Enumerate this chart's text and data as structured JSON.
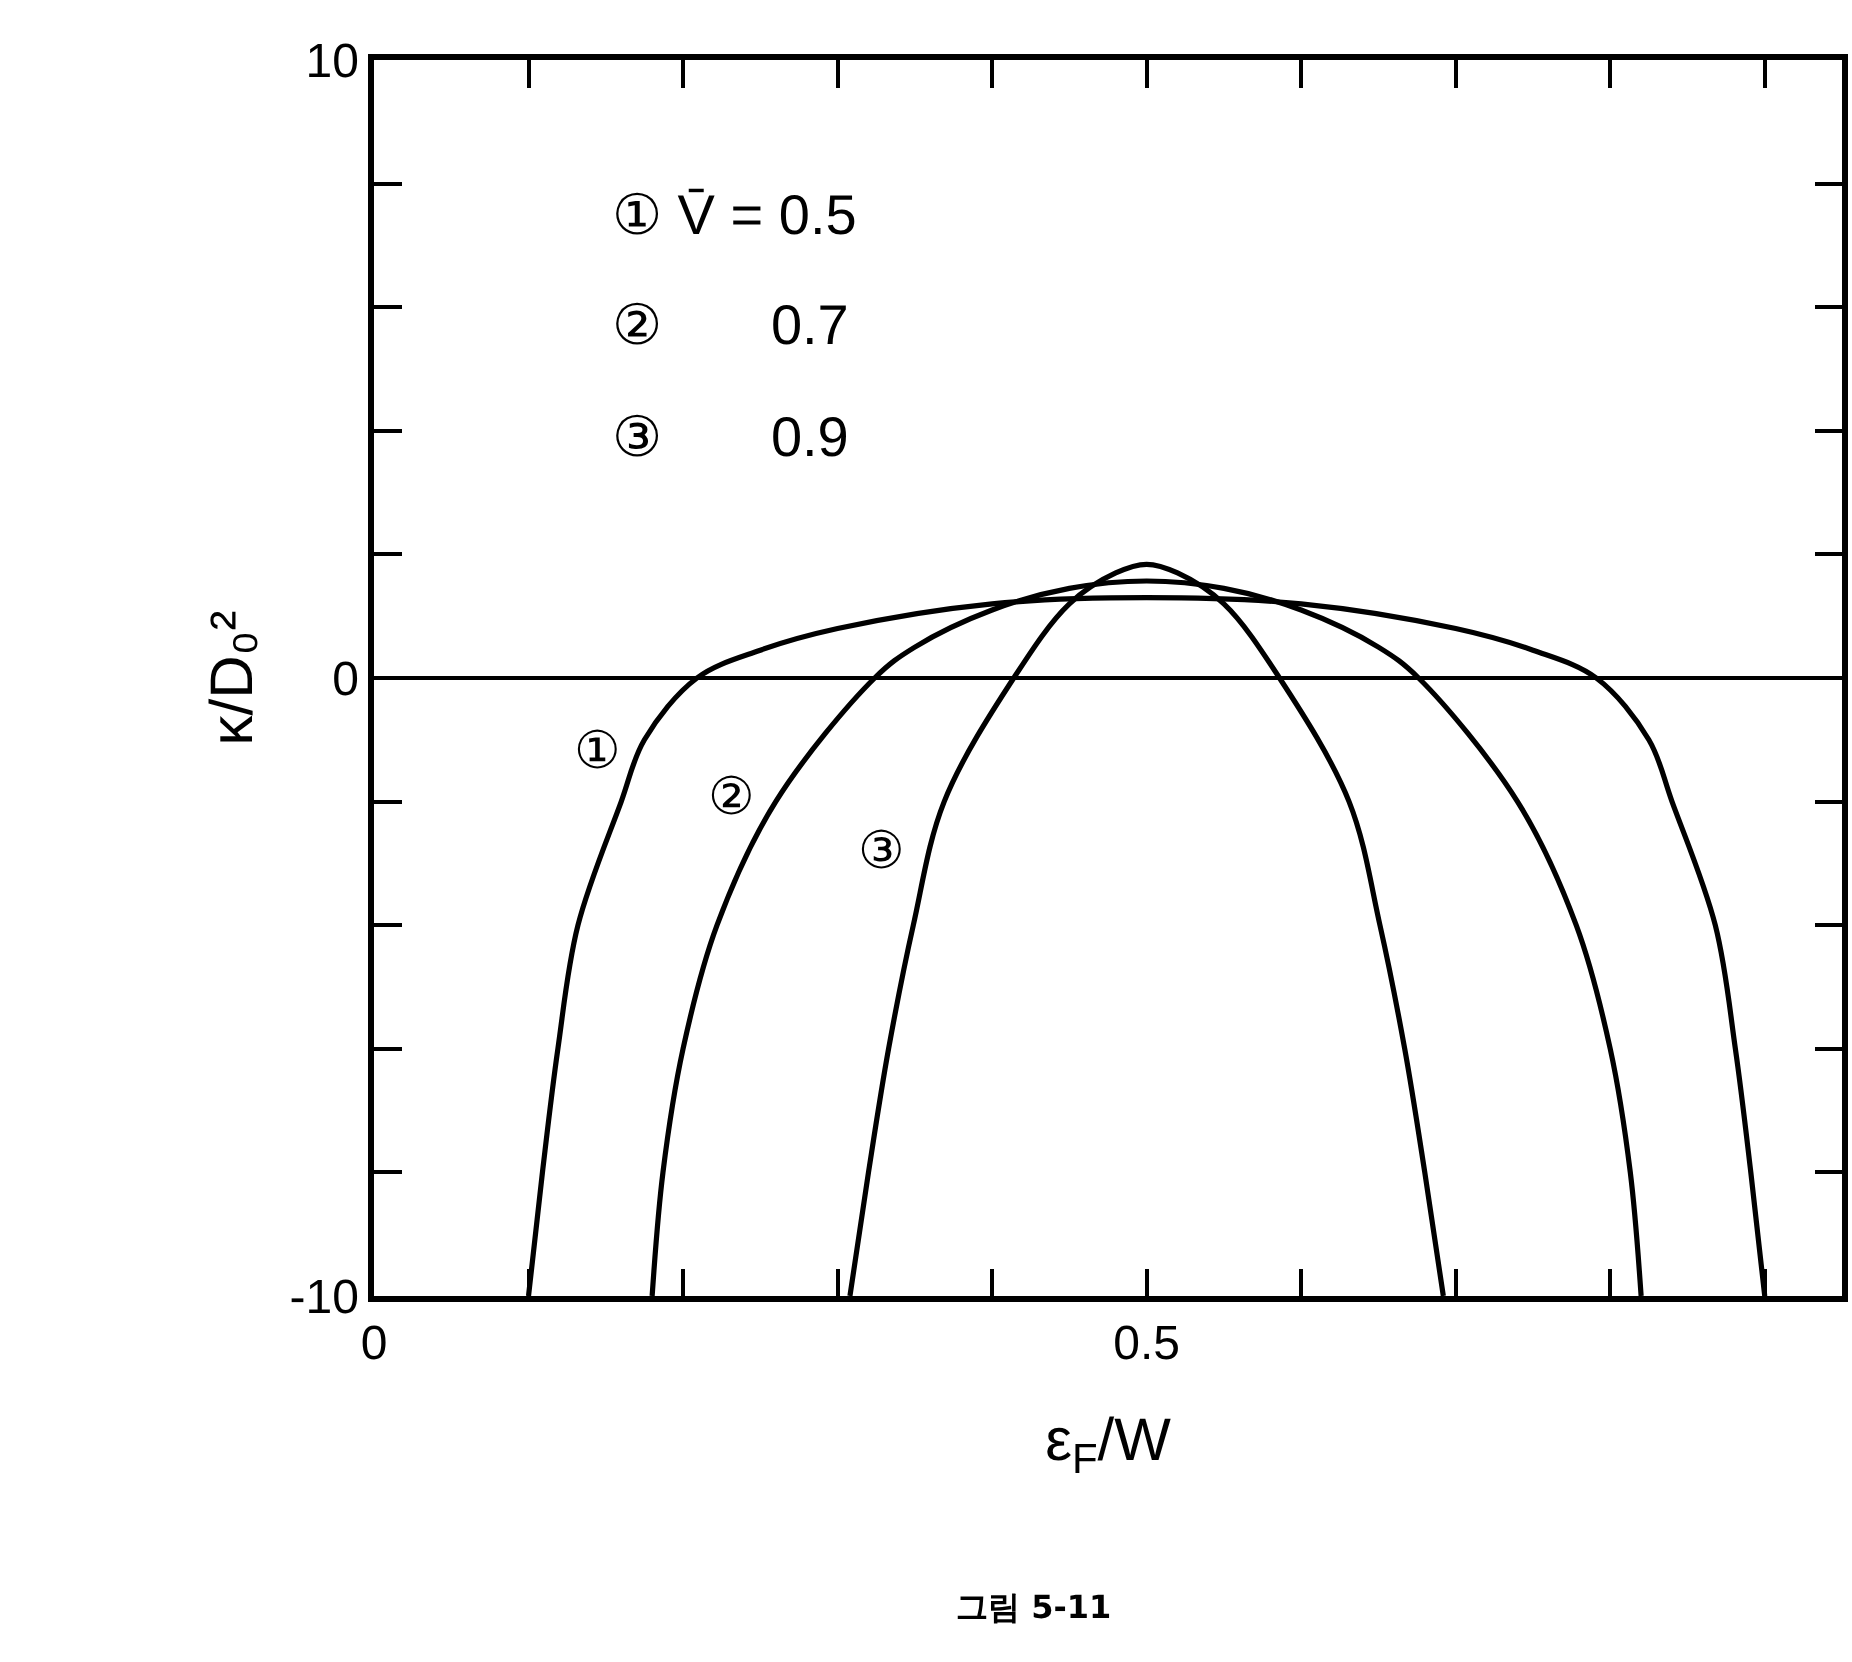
{
  "chart_data": {
    "type": "line",
    "xlabel": "ε$_{F}$/W",
    "ylabel": "κ/D₀²",
    "xlim": [
      0,
      0.95
    ],
    "ylim": [
      -10,
      10
    ],
    "xticks": [
      0,
      {
        "value": 0.1,
        "label": null
      },
      {
        "value": 0.2,
        "label": null
      },
      {
        "value": 0.3,
        "label": null
      },
      {
        "value": 0.4,
        "label": null
      },
      0.5,
      {
        "value": 0.6,
        "label": null
      },
      {
        "value": 0.7,
        "label": null
      },
      {
        "value": 0.8,
        "label": null
      },
      {
        "value": 0.9,
        "label": null
      }
    ],
    "yticks": [
      -10,
      {
        "value": -8,
        "label": null
      },
      {
        "value": -6,
        "label": null
      },
      {
        "value": -4,
        "label": null
      },
      {
        "value": -2,
        "label": null
      },
      0,
      {
        "value": 2,
        "label": null
      },
      {
        "value": 4,
        "label": null
      },
      {
        "value": 6,
        "label": null
      },
      {
        "value": 8,
        "label": null
      },
      10
    ],
    "grid": false,
    "marker": "none",
    "line_style": "solid",
    "ref_lines": [
      {
        "axis": "y",
        "value": 0,
        "color": "#000000"
      }
    ],
    "series": [
      {
        "color": "#000000",
        "x": [
          0.1,
          0.109,
          0.119,
          0.132,
          0.16,
          0.175,
          0.209,
          0.25,
          0.3,
          0.4,
          0.5,
          0.6,
          0.7,
          0.75,
          0.791,
          0.825,
          0.84,
          0.868,
          0.881,
          0.891,
          0.9
        ],
        "values": [
          -10,
          -8,
          -6,
          -4,
          -2,
          -1,
          0,
          0.45,
          0.8,
          1.2,
          1.3,
          1.2,
          0.8,
          0.45,
          0,
          -1,
          -2,
          -4,
          -6,
          -8,
          -10
        ]
      },
      {
        "color": "#000000",
        "x": [
          0.18,
          0.187,
          0.2,
          0.222,
          0.26,
          0.324,
          0.35,
          0.4,
          0.45,
          0.5,
          0.55,
          0.6,
          0.65,
          0.676,
          0.74,
          0.778,
          0.8,
          0.813,
          0.82
        ],
        "values": [
          -10,
          -8,
          -6,
          -4,
          -2,
          0,
          0.5,
          1.1,
          1.45,
          1.57,
          1.45,
          1.1,
          0.5,
          0,
          -2,
          -4,
          -6,
          -8,
          -10
        ]
      },
      {
        "color": "#000000",
        "x": [
          0.308,
          0.32,
          0.333,
          0.349,
          0.369,
          0.414,
          0.45,
          0.48,
          0.5,
          0.52,
          0.55,
          0.586,
          0.631,
          0.651,
          0.667,
          0.68,
          0.692
        ],
        "values": [
          -10,
          -8,
          -6,
          -4,
          -2,
          0,
          1.2,
          1.7,
          1.84,
          1.7,
          1.2,
          0,
          -2,
          -4,
          -6,
          -8,
          -10
        ]
      }
    ],
    "annotations": [
      "①",
      "②",
      "③",
      "① V̄ = 0.5",
      "②       0.7",
      "③       0.9",
      "그림 5-11"
    ]
  }
}
